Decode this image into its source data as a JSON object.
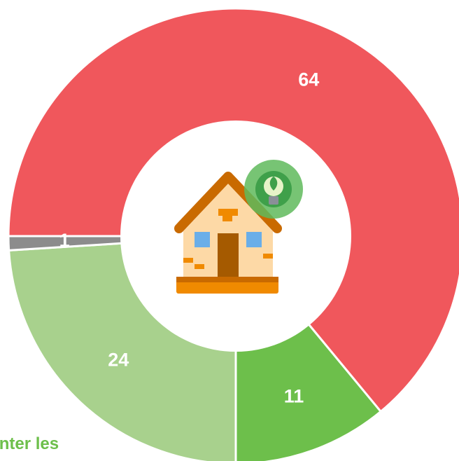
{
  "chart_data": {
    "type": "donut",
    "values": [
      64,
      11,
      24,
      1
    ],
    "colors": [
      "#f0575c",
      "#6dbf4b",
      "#a8d18d",
      "#8c8c8c"
    ],
    "annotation": "menter les"
  }
}
